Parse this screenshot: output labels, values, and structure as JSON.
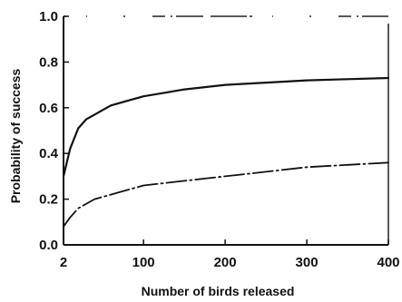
{
  "chart_data": {
    "type": "line",
    "xlabel": "Number of birds released",
    "ylabel": "Probability of success",
    "xlim": [
      2,
      400
    ],
    "ylim": [
      0.0,
      1.0
    ],
    "x_ticks": [
      2,
      100,
      200,
      300,
      400
    ],
    "x_tick_labels": [
      "2",
      "100",
      "200",
      "300",
      "400"
    ],
    "y_ticks": [
      0.0,
      0.2,
      0.4,
      0.6,
      0.8,
      1.0
    ],
    "y_tick_labels": [
      "0.0",
      "0.2",
      "0.4",
      "0.6",
      "0.8",
      "1.0"
    ],
    "grid": false,
    "legend": "none",
    "series": [
      {
        "style": "solid",
        "color": "#111111",
        "x": [
          2,
          10,
          20,
          30,
          40,
          50,
          60,
          80,
          100,
          125,
          150,
          175,
          200,
          250,
          300,
          350,
          400
        ],
        "y": [
          0.3,
          0.42,
          0.51,
          0.55,
          0.57,
          0.59,
          0.61,
          0.63,
          0.65,
          0.665,
          0.68,
          0.69,
          0.7,
          0.71,
          0.72,
          0.725,
          0.73
        ]
      },
      {
        "style": "dashed",
        "color": "#111111",
        "x": [
          2,
          10,
          20,
          30,
          40,
          50,
          60,
          80,
          100,
          125,
          150,
          175,
          200,
          250,
          300,
          350,
          400
        ],
        "y": [
          0.08,
          0.12,
          0.16,
          0.18,
          0.2,
          0.21,
          0.22,
          0.24,
          0.26,
          0.27,
          0.28,
          0.29,
          0.3,
          0.32,
          0.34,
          0.35,
          0.36
        ]
      }
    ]
  }
}
